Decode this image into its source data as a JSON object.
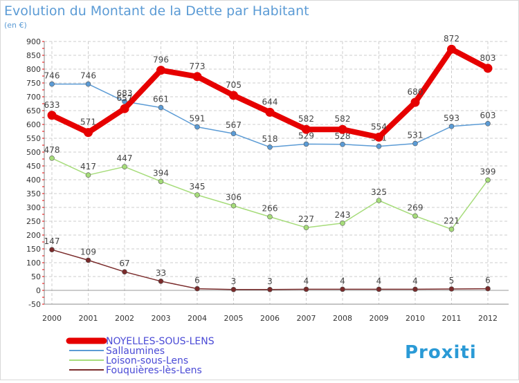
{
  "chart_data": {
    "type": "line",
    "title": "Evolution du Montant de la Dette par Habitant",
    "subtitle": "(en €)",
    "xlabel": "",
    "ylabel": "",
    "x": [
      "2000",
      "2001",
      "2002",
      "2003",
      "2004",
      "2005",
      "2006",
      "2007",
      "2008",
      "2009",
      "2010",
      "2011",
      "2012"
    ],
    "ylim": [
      -50,
      900
    ],
    "yticks": [
      -50,
      0,
      50,
      100,
      150,
      200,
      250,
      300,
      350,
      400,
      450,
      500,
      550,
      600,
      650,
      700,
      750,
      800,
      850,
      900
    ],
    "grid": true,
    "legend_position": "bottom-left",
    "series": [
      {
        "name": "NOYELLES-SOUS-LENS",
        "color": "#e60000",
        "values": [
          633,
          571,
          657,
          796,
          773,
          705,
          644,
          582,
          582,
          554,
          680,
          872,
          803
        ]
      },
      {
        "name": "Sallaumines",
        "color": "#5b9bd5",
        "values": [
          746,
          746,
          683,
          661,
          591,
          567,
          518,
          529,
          528,
          521,
          531,
          593,
          603
        ]
      },
      {
        "name": "Loison-sous-Lens",
        "color": "#a6dc7a",
        "values": [
          478,
          417,
          447,
          394,
          345,
          306,
          266,
          227,
          243,
          325,
          269,
          221,
          399
        ]
      },
      {
        "name": "Fouquières-lès-Lens",
        "color": "#7a2b2b",
        "values": [
          147,
          109,
          67,
          33,
          6,
          3,
          3,
          4,
          4,
          4,
          4,
          5,
          6
        ]
      }
    ]
  },
  "branding": {
    "logo_text": "Proxiti"
  }
}
